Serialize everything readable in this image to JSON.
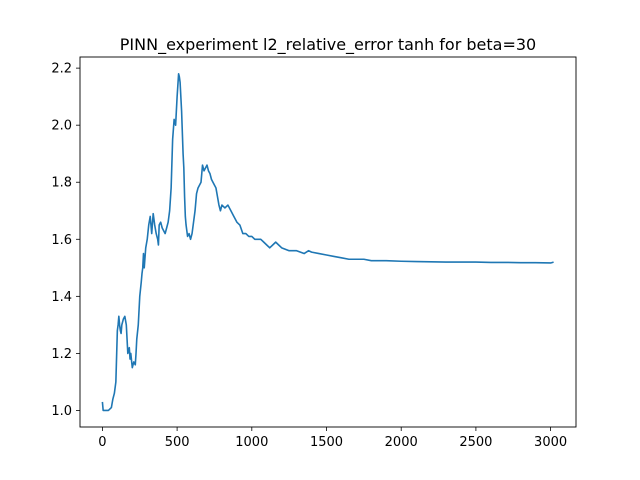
{
  "chart_data": {
    "type": "line",
    "title": "PINN_experiment l2_relative_error tanh for beta=30",
    "xlabel": "",
    "ylabel": "",
    "xlim": [
      -150,
      3170
    ],
    "ylim": [
      0.942,
      2.239
    ],
    "x_ticks": [
      0,
      500,
      1000,
      1500,
      2000,
      2500,
      3000
    ],
    "x_tick_labels": [
      "0",
      "500",
      "1000",
      "1500",
      "2000",
      "2500",
      "3000"
    ],
    "y_ticks": [
      1.0,
      1.2,
      1.4,
      1.6,
      1.8,
      2.0,
      2.2
    ],
    "y_tick_labels": [
      "1.0",
      "1.2",
      "1.4",
      "1.6",
      "1.8",
      "2.0",
      "2.2"
    ],
    "grid": false,
    "line_color": "#1f77b4",
    "series": [
      {
        "x": [
          0,
          5,
          10,
          20,
          40,
          60,
          70,
          80,
          90,
          100,
          105,
          110,
          115,
          120,
          125,
          130,
          140,
          150,
          160,
          170,
          180,
          185,
          190,
          200,
          210,
          220,
          225,
          230,
          240,
          250,
          260,
          265,
          270,
          275,
          280,
          290,
          300,
          310,
          320,
          330,
          340,
          350,
          360,
          370,
          375,
          380,
          390,
          400,
          410,
          420,
          430,
          440,
          450,
          460,
          470,
          480,
          490,
          500,
          510,
          515,
          520,
          530,
          540,
          545,
          550,
          555,
          560,
          570,
          580,
          590,
          600,
          610,
          620,
          630,
          640,
          650,
          660,
          670,
          680,
          690,
          700,
          710,
          720,
          730,
          740,
          750,
          760,
          770,
          780,
          790,
          800,
          820,
          840,
          860,
          880,
          900,
          920,
          940,
          960,
          980,
          1000,
          1020,
          1040,
          1060,
          1080,
          1100,
          1120,
          1140,
          1160,
          1180,
          1200,
          1250,
          1300,
          1350,
          1380,
          1400,
          1450,
          1500,
          1550,
          1600,
          1650,
          1700,
          1750,
          1800,
          1900,
          2000,
          2100,
          2200,
          2300,
          2400,
          2500,
          2600,
          2700,
          2800,
          2900,
          3000,
          3020
        ],
        "values": [
          1.03,
          1.0,
          1.0,
          1.0,
          1.0,
          1.01,
          1.04,
          1.06,
          1.1,
          1.28,
          1.3,
          1.33,
          1.3,
          1.28,
          1.27,
          1.3,
          1.32,
          1.33,
          1.3,
          1.2,
          1.22,
          1.18,
          1.2,
          1.15,
          1.17,
          1.16,
          1.2,
          1.25,
          1.3,
          1.4,
          1.45,
          1.48,
          1.5,
          1.55,
          1.5,
          1.57,
          1.6,
          1.65,
          1.68,
          1.62,
          1.69,
          1.65,
          1.62,
          1.6,
          1.58,
          1.65,
          1.66,
          1.64,
          1.63,
          1.62,
          1.64,
          1.66,
          1.7,
          1.78,
          1.95,
          2.02,
          2.0,
          2.1,
          2.18,
          2.17,
          2.15,
          2.05,
          1.9,
          1.85,
          1.75,
          1.68,
          1.65,
          1.61,
          1.62,
          1.6,
          1.62,
          1.66,
          1.7,
          1.76,
          1.78,
          1.79,
          1.8,
          1.86,
          1.84,
          1.85,
          1.86,
          1.84,
          1.83,
          1.81,
          1.8,
          1.79,
          1.78,
          1.75,
          1.72,
          1.7,
          1.72,
          1.71,
          1.72,
          1.7,
          1.68,
          1.66,
          1.65,
          1.62,
          1.62,
          1.61,
          1.61,
          1.6,
          1.6,
          1.6,
          1.59,
          1.58,
          1.57,
          1.58,
          1.59,
          1.58,
          1.57,
          1.56,
          1.56,
          1.55,
          1.56,
          1.555,
          1.55,
          1.545,
          1.54,
          1.535,
          1.53,
          1.53,
          1.53,
          1.525,
          1.525,
          1.523,
          1.522,
          1.521,
          1.52,
          1.52,
          1.52,
          1.519,
          1.519,
          1.518,
          1.518,
          1.517,
          1.52
        ]
      }
    ]
  }
}
